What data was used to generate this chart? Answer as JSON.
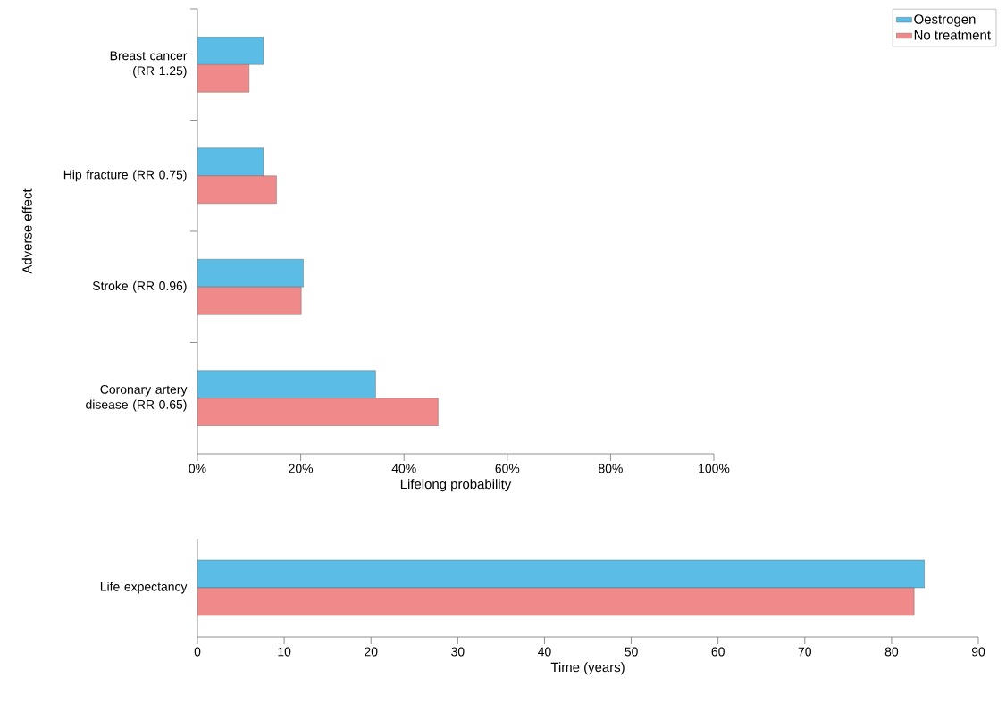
{
  "chart_data": [
    {
      "type": "bar",
      "orientation": "horizontal",
      "ylabel": "Adverse effect",
      "xlabel": "Lifelong probability",
      "categories": [
        "Breast cancer (RR 1.25)",
        "Hip fracture (RR 0.75)",
        "Stroke (RR 0.96)",
        "Coronary artery disease (RR 0.65)"
      ],
      "series": [
        {
          "name": "Oestrogen",
          "color": "#5bbde6",
          "values": [
            12.8,
            12.8,
            20.5,
            34.5
          ]
        },
        {
          "name": "No treatment",
          "color": "#f08a8a",
          "values": [
            10.0,
            15.3,
            20.1,
            46.6
          ]
        }
      ],
      "xlim": [
        0,
        100
      ],
      "xticks": [
        {
          "value": 0,
          "label": "0%"
        },
        {
          "value": 20,
          "label": "20%"
        },
        {
          "value": 40,
          "label": "40%"
        },
        {
          "value": 60,
          "label": "60%"
        },
        {
          "value": 80,
          "label": "80%"
        },
        {
          "value": 100,
          "label": "100%"
        }
      ],
      "legend": "top right"
    },
    {
      "type": "bar",
      "orientation": "horizontal",
      "xlabel": "Time (years)",
      "categories": [
        "Life expectancy"
      ],
      "series": [
        {
          "color": "#5bbde6",
          "values": [
            83.8
          ]
        },
        {
          "color": "#f08a8a",
          "values": [
            82.6
          ]
        }
      ],
      "xlim": [
        0,
        90
      ],
      "xticks": [
        0,
        10,
        20,
        30,
        40,
        50,
        60,
        70,
        80,
        90
      ]
    }
  ]
}
